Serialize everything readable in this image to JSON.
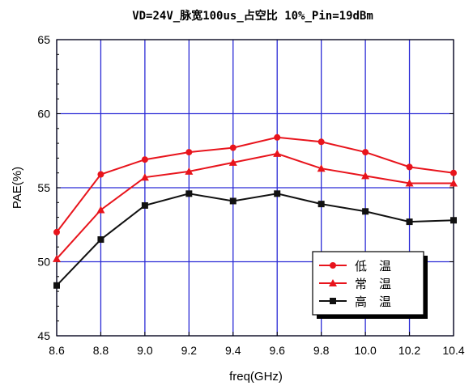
{
  "chart_data": {
    "type": "line",
    "title": "VD=24V_脉宽100us_占空比 10%_Pin=19dBm",
    "xlabel": "freq(GHz)",
    "ylabel": "PAE(%)",
    "xlim": [
      8.6,
      10.4
    ],
    "ylim": [
      45,
      65
    ],
    "x_ticks": [
      "8.6",
      "8.8",
      "9.0",
      "9.2",
      "9.4",
      "9.6",
      "9.8",
      "10.0",
      "10.2",
      "10.4"
    ],
    "y_ticks": [
      "45",
      "50",
      "55",
      "60",
      "65"
    ],
    "grid": true,
    "legend_position": "bottom-right",
    "x": [
      8.6,
      8.8,
      9.0,
      9.2,
      9.4,
      9.6,
      9.8,
      10.0,
      10.2,
      10.4
    ],
    "series": [
      {
        "name": "低　温",
        "color": "#e8141c",
        "marker": "circle",
        "values": [
          52.0,
          55.9,
          56.9,
          57.4,
          57.7,
          58.4,
          58.1,
          57.4,
          56.4,
          56.0
        ]
      },
      {
        "name": "常　温",
        "color": "#e8141c",
        "marker": "triangle",
        "values": [
          50.2,
          53.5,
          55.7,
          56.1,
          56.7,
          57.3,
          56.3,
          55.8,
          55.3,
          55.3
        ]
      },
      {
        "name": "高　温",
        "color": "#111111",
        "marker": "square",
        "values": [
          48.4,
          51.5,
          53.8,
          54.6,
          54.1,
          54.6,
          53.9,
          53.4,
          52.7,
          52.8
        ]
      }
    ]
  }
}
